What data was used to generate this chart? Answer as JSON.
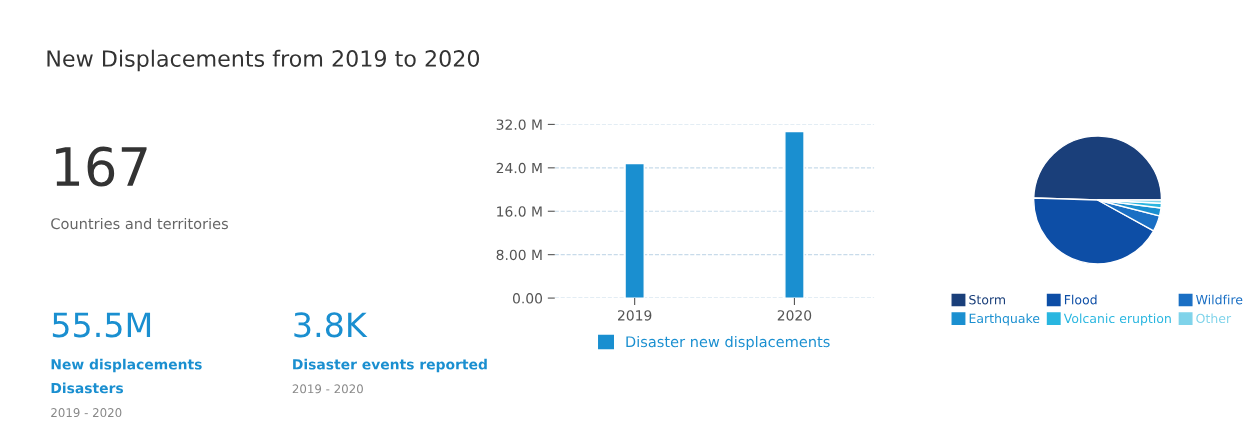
{
  "chart_data": [
    {
      "type": "other",
      "title": "New Displacements from 2019 to 2020",
      "annotations": [
        "167",
        "Countries and territories",
        "55.5M",
        "New displacements",
        "Disasters",
        "2019 - 2020",
        "3.8K",
        "Disaster events reported",
        "2019 - 2020"
      ]
    },
    {
      "type": "bar",
      "categories": [
        "2019",
        "2020"
      ],
      "series": [
        {
          "name": "Disaster new displacements",
          "color": "#1a8fd0",
          "values": [
            24.8,
            30.7
          ]
        }
      ],
      "ylim": [
        0,
        32
      ],
      "yticks": [
        {
          "value": 0,
          "label": "0.00"
        },
        {
          "value": 8,
          "label": "8.00 M"
        },
        {
          "value": 16,
          "label": "16.0 M"
        },
        {
          "value": 24,
          "label": "24.0 M"
        },
        {
          "value": 32,
          "label": "32.0 M"
        }
      ],
      "grid": "y",
      "legend": "bottom"
    },
    {
      "type": "pie",
      "categories": [
        "Storm",
        "Flood",
        "Wildfire",
        "Earthquake",
        "Volcanic eruption",
        "Other"
      ],
      "values": [
        49.5,
        42.5,
        4,
        2,
        1.2,
        0.8
      ],
      "colors": [
        "#1a3f7a",
        "#0d4ea6",
        "#1a6fc4",
        "#1a8fd0",
        "#29b6e0",
        "#7fd3ea"
      ],
      "legend": "bottom"
    }
  ]
}
